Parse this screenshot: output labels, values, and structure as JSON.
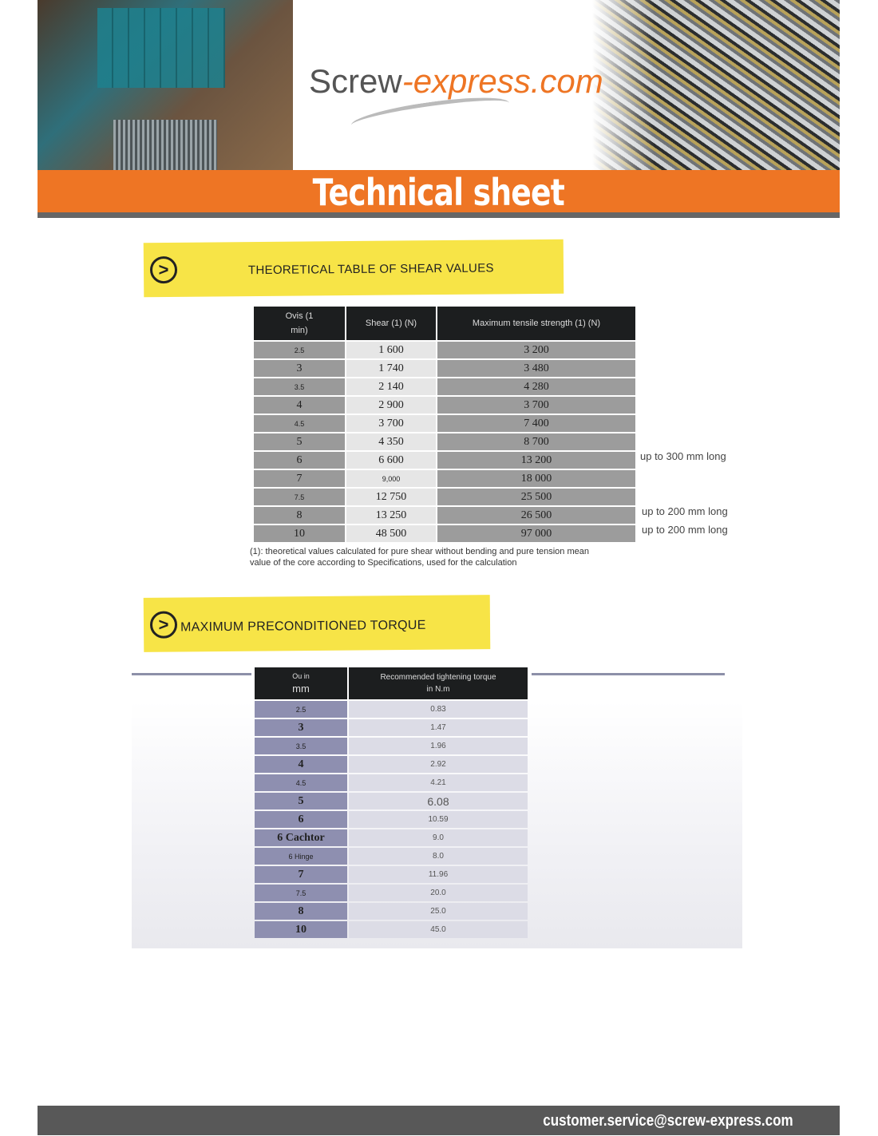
{
  "header": {
    "logo_main": "Screw",
    "logo_accent": "-express.com",
    "title": "Technical sheet",
    "colors": {
      "brand_orange": "#ee7524",
      "banner_yellow": "#f7e447"
    }
  },
  "section1": {
    "title": "THEORETICAL TABLE OF SHEAR VALUES",
    "icon": "chevron-right-circle-icon",
    "columns": [
      "Ovis (1 min)",
      "Shear (1) (N)",
      "Maximum tensile strength (1) (N)"
    ],
    "rows": [
      {
        "d": "2.5",
        "shear": "1 600",
        "tensile": "3 200",
        "note": ""
      },
      {
        "d": "3",
        "shear": "1 740",
        "tensile": "3 480",
        "note": ""
      },
      {
        "d": "3.5",
        "shear": "2 140",
        "tensile": "4 280",
        "note": ""
      },
      {
        "d": "4",
        "shear": "2 900",
        "tensile": "3 700",
        "note": ""
      },
      {
        "d": "4.5",
        "shear": "3 700",
        "tensile": "7 400",
        "note": ""
      },
      {
        "d": "5",
        "shear": "4 350",
        "tensile": "8 700",
        "note": ""
      },
      {
        "d": "6",
        "shear": "6 600",
        "tensile": "13 200",
        "note": "up to 300 mm long"
      },
      {
        "d": "7",
        "shear": "9,000",
        "tensile": "18 000",
        "note": ""
      },
      {
        "d": "7.5",
        "shear": "12 750",
        "tensile": "25 500",
        "note": ""
      },
      {
        "d": "8",
        "shear": "13 250",
        "tensile": "26 500",
        "note": "up to 200 mm long"
      },
      {
        "d": "10",
        "shear": "48 500",
        "tensile": "97 000",
        "note": "up to 200 mm long"
      }
    ],
    "footnote_1": "(1): theoretical values calculated for pure shear without bending and pure tension mean",
    "footnote_2": "value of the core according to Specifications, used for the calculation"
  },
  "section2": {
    "title": "MAXIMUM PRECONDITIONED TORQUE",
    "icon": "chevron-right-circle-icon",
    "columns": [
      "Ou in",
      "mm",
      "Recommended tightening torque",
      "in N.m"
    ],
    "rows": [
      {
        "d": "2.5",
        "torque": "0.83"
      },
      {
        "d": "3",
        "torque": "1.47"
      },
      {
        "d": "3.5",
        "torque": "1.96"
      },
      {
        "d": "4",
        "torque": "2.92"
      },
      {
        "d": "4.5",
        "torque": "4.21"
      },
      {
        "d": "5",
        "torque": "6.08"
      },
      {
        "d": "6",
        "torque": "10.59"
      },
      {
        "d": "6 Cachtor",
        "torque": "9.0"
      },
      {
        "d": "6 Hinge",
        "torque": "8.0"
      },
      {
        "d": "7",
        "torque": "11.96"
      },
      {
        "d": "7.5",
        "torque": "20.0"
      },
      {
        "d": "8",
        "torque": "25.0"
      },
      {
        "d": "10",
        "torque": "45.0"
      }
    ]
  },
  "footer": {
    "email": "customer.service@screw-express.com"
  }
}
